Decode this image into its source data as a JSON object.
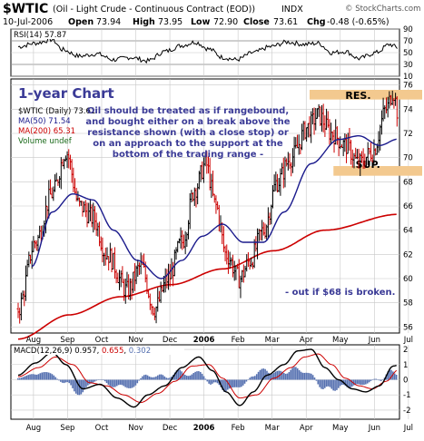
{
  "header": {
    "symbol": "$WTIC",
    "description": "(Oil - Light Crude - Continuous Contract (EOD))",
    "exchange": "INDX",
    "watermark": "© StockCharts.com",
    "date": "10-Jul-2006",
    "open_label": "Open",
    "open": "73.94",
    "high_label": "High",
    "high": "73.95",
    "low_label": "Low",
    "low": "72.90",
    "close_label": "Close",
    "close": "73.61",
    "chg_label": "Chg",
    "chg": "-0.48 (-0.65%)"
  },
  "rsi": {
    "label": "RSI(14)",
    "value": "57.87",
    "ticks": [
      "90",
      "70",
      "50",
      "30",
      "10"
    ],
    "levels": [
      30,
      70
    ],
    "line_color": "#000000"
  },
  "price": {
    "chart_title": "1-year Chart",
    "legend": [
      {
        "text": "$WTIC (Daily) 73.61",
        "color": "#000000"
      },
      {
        "text": "MA(50) 71.54",
        "color": "#1a1a8c"
      },
      {
        "text": "MA(200) 65.31",
        "color": "#cc0000"
      },
      {
        "text": "Volume undef",
        "color": "#1a6a1a"
      }
    ],
    "y_ticks": [
      "76",
      "74",
      "72",
      "70",
      "68",
      "66",
      "64",
      "62",
      "60",
      "58",
      "56"
    ],
    "comment": [
      "Oil should be treated as if rangebound,",
      "and bought either on a break above the",
      "resistance shown (with a close stop) or",
      "on an approach to the support at the",
      "bottom of the trading range -"
    ],
    "stop_note": "- out if $68 is broken.",
    "resistance_label": "RES.",
    "support_label": "SUP.",
    "zone_color": "#f3c98f"
  },
  "macd": {
    "label": "MACD(12,26,9)",
    "v1": "0.957",
    "v2": "0.655",
    "v3": "0.302",
    "ticks": [
      "2",
      "1",
      "0",
      "-1",
      "-2"
    ]
  },
  "x_axis": {
    "labels": [
      "Aug",
      "Sep",
      "Oct",
      "Nov",
      "Dec",
      "2006",
      "Feb",
      "Mar",
      "Apr",
      "May",
      "Jun",
      "Jul"
    ],
    "bold_label": "2006"
  },
  "colors": {
    "bar_up": "#000000",
    "bar_down": "#cc0000",
    "ma50": "#1a1a8c",
    "ma200": "#cc0000",
    "grid": "#c8c8c8",
    "panel_bg": "#ffffff",
    "frame": "#000000",
    "macd_line": "#000000",
    "signal_line": "#cc0000",
    "histogram": "#5570b0"
  },
  "chart_data": {
    "type": "ohlc",
    "title": "$WTIC (Oil - Light Crude - Continuous Contract (EOD))",
    "x_unit": "month",
    "y_range_price": [
      55.5,
      76.5
    ],
    "anchors_price": [
      [
        0,
        57.5
      ],
      [
        0.5,
        63
      ],
      [
        1,
        67
      ],
      [
        1.4,
        70.5
      ],
      [
        1.8,
        66
      ],
      [
        2.2,
        65
      ],
      [
        2.6,
        62
      ],
      [
        3.2,
        59
      ],
      [
        3.6,
        61
      ],
      [
        4,
        57.5
      ],
      [
        4.4,
        60
      ],
      [
        4.8,
        63
      ],
      [
        5.2,
        67.5
      ],
      [
        5.5,
        69.5
      ],
      [
        5.8,
        66
      ],
      [
        6.1,
        62
      ],
      [
        6.5,
        60
      ],
      [
        6.8,
        61.5
      ],
      [
        7.2,
        64
      ],
      [
        7.6,
        68
      ],
      [
        8.0,
        70
      ],
      [
        8.5,
        72.5
      ],
      [
        8.8,
        73.5
      ],
      [
        9.2,
        72
      ],
      [
        9.6,
        71
      ],
      [
        10.0,
        69.5
      ],
      [
        10.4,
        70.5
      ],
      [
        10.8,
        74
      ],
      [
        11.0,
        75.5
      ],
      [
        11.15,
        73.6
      ]
    ],
    "ma50_anchors": [
      [
        0.4,
        61
      ],
      [
        1,
        65.5
      ],
      [
        1.6,
        67
      ],
      [
        2.2,
        66.5
      ],
      [
        2.8,
        64
      ],
      [
        3.5,
        61.5
      ],
      [
        4.2,
        60
      ],
      [
        4.8,
        61.5
      ],
      [
        5.4,
        63.5
      ],
      [
        6,
        64.5
      ],
      [
        6.6,
        63
      ],
      [
        7.2,
        63
      ],
      [
        7.8,
        65.5
      ],
      [
        8.6,
        69.5
      ],
      [
        9.4,
        71.5
      ],
      [
        10,
        71.8
      ],
      [
        10.6,
        71
      ],
      [
        11.15,
        71.54
      ]
    ],
    "ma200_anchors": [
      [
        0,
        55
      ],
      [
        1.5,
        57
      ],
      [
        3,
        58.5
      ],
      [
        4.5,
        59.5
      ],
      [
        6,
        60.8
      ],
      [
        7.5,
        62.3
      ],
      [
        9,
        64
      ],
      [
        11.15,
        65.31
      ]
    ],
    "resistance_range": [
      74.8,
      75.6
    ],
    "support_range": [
      68.5,
      69.3
    ],
    "rsi_range": [
      10,
      90
    ],
    "rsi_anchors": [
      [
        0,
        60
      ],
      [
        0.5,
        66
      ],
      [
        1,
        72
      ],
      [
        1.3,
        55
      ],
      [
        1.8,
        44
      ],
      [
        2.3,
        48
      ],
      [
        2.8,
        38
      ],
      [
        3.3,
        42
      ],
      [
        3.8,
        36
      ],
      [
        4.3,
        52
      ],
      [
        4.8,
        62
      ],
      [
        5.2,
        68
      ],
      [
        5.6,
        56
      ],
      [
        6.0,
        42
      ],
      [
        6.4,
        38
      ],
      [
        6.9,
        50
      ],
      [
        7.4,
        60
      ],
      [
        7.9,
        68
      ],
      [
        8.4,
        64
      ],
      [
        8.8,
        66
      ],
      [
        9.2,
        50
      ],
      [
        9.6,
        52
      ],
      [
        10.0,
        40
      ],
      [
        10.5,
        50
      ],
      [
        10.9,
        64
      ],
      [
        11.15,
        57.87
      ]
    ],
    "macd_range": [
      -2.6,
      2.3
    ],
    "macd_anchors": [
      [
        0,
        0.3
      ],
      [
        0.5,
        1.1
      ],
      [
        1.0,
        1.8
      ],
      [
        1.4,
        1.0
      ],
      [
        1.9,
        -0.6
      ],
      [
        2.4,
        -0.3
      ],
      [
        2.9,
        -1.2
      ],
      [
        3.4,
        -1.8
      ],
      [
        3.8,
        -1.0
      ],
      [
        4.3,
        -0.4
      ],
      [
        4.8,
        0.8
      ],
      [
        5.3,
        1.5
      ],
      [
        5.7,
        0.6
      ],
      [
        6.1,
        -0.8
      ],
      [
        6.5,
        -1.7
      ],
      [
        6.9,
        -0.8
      ],
      [
        7.3,
        0.3
      ],
      [
        7.8,
        1.0
      ],
      [
        8.2,
        1.9
      ],
      [
        8.6,
        2.0
      ],
      [
        9.0,
        0.8
      ],
      [
        9.4,
        0.0
      ],
      [
        9.8,
        -0.6
      ],
      [
        10.2,
        -0.8
      ],
      [
        10.6,
        -0.4
      ],
      [
        11.0,
        0.9
      ],
      [
        11.15,
        0.957
      ]
    ],
    "signal_anchors": [
      [
        0,
        0.2
      ],
      [
        0.6,
        0.8
      ],
      [
        1.1,
        1.5
      ],
      [
        1.6,
        1.0
      ],
      [
        2.1,
        -0.2
      ],
      [
        2.6,
        -0.4
      ],
      [
        3.1,
        -1.0
      ],
      [
        3.6,
        -1.5
      ],
      [
        4.1,
        -0.9
      ],
      [
        4.6,
        -0.1
      ],
      [
        5.1,
        0.9
      ],
      [
        5.6,
        1.0
      ],
      [
        6.0,
        0.1
      ],
      [
        6.5,
        -1.2
      ],
      [
        7.0,
        -1.0
      ],
      [
        7.5,
        0.1
      ],
      [
        8.0,
        0.8
      ],
      [
        8.4,
        1.5
      ],
      [
        8.8,
        1.7
      ],
      [
        9.2,
        1.0
      ],
      [
        9.6,
        0.1
      ],
      [
        10.0,
        -0.4
      ],
      [
        10.4,
        -0.6
      ],
      [
        10.8,
        -0.1
      ],
      [
        11.15,
        0.655
      ]
    ]
  }
}
